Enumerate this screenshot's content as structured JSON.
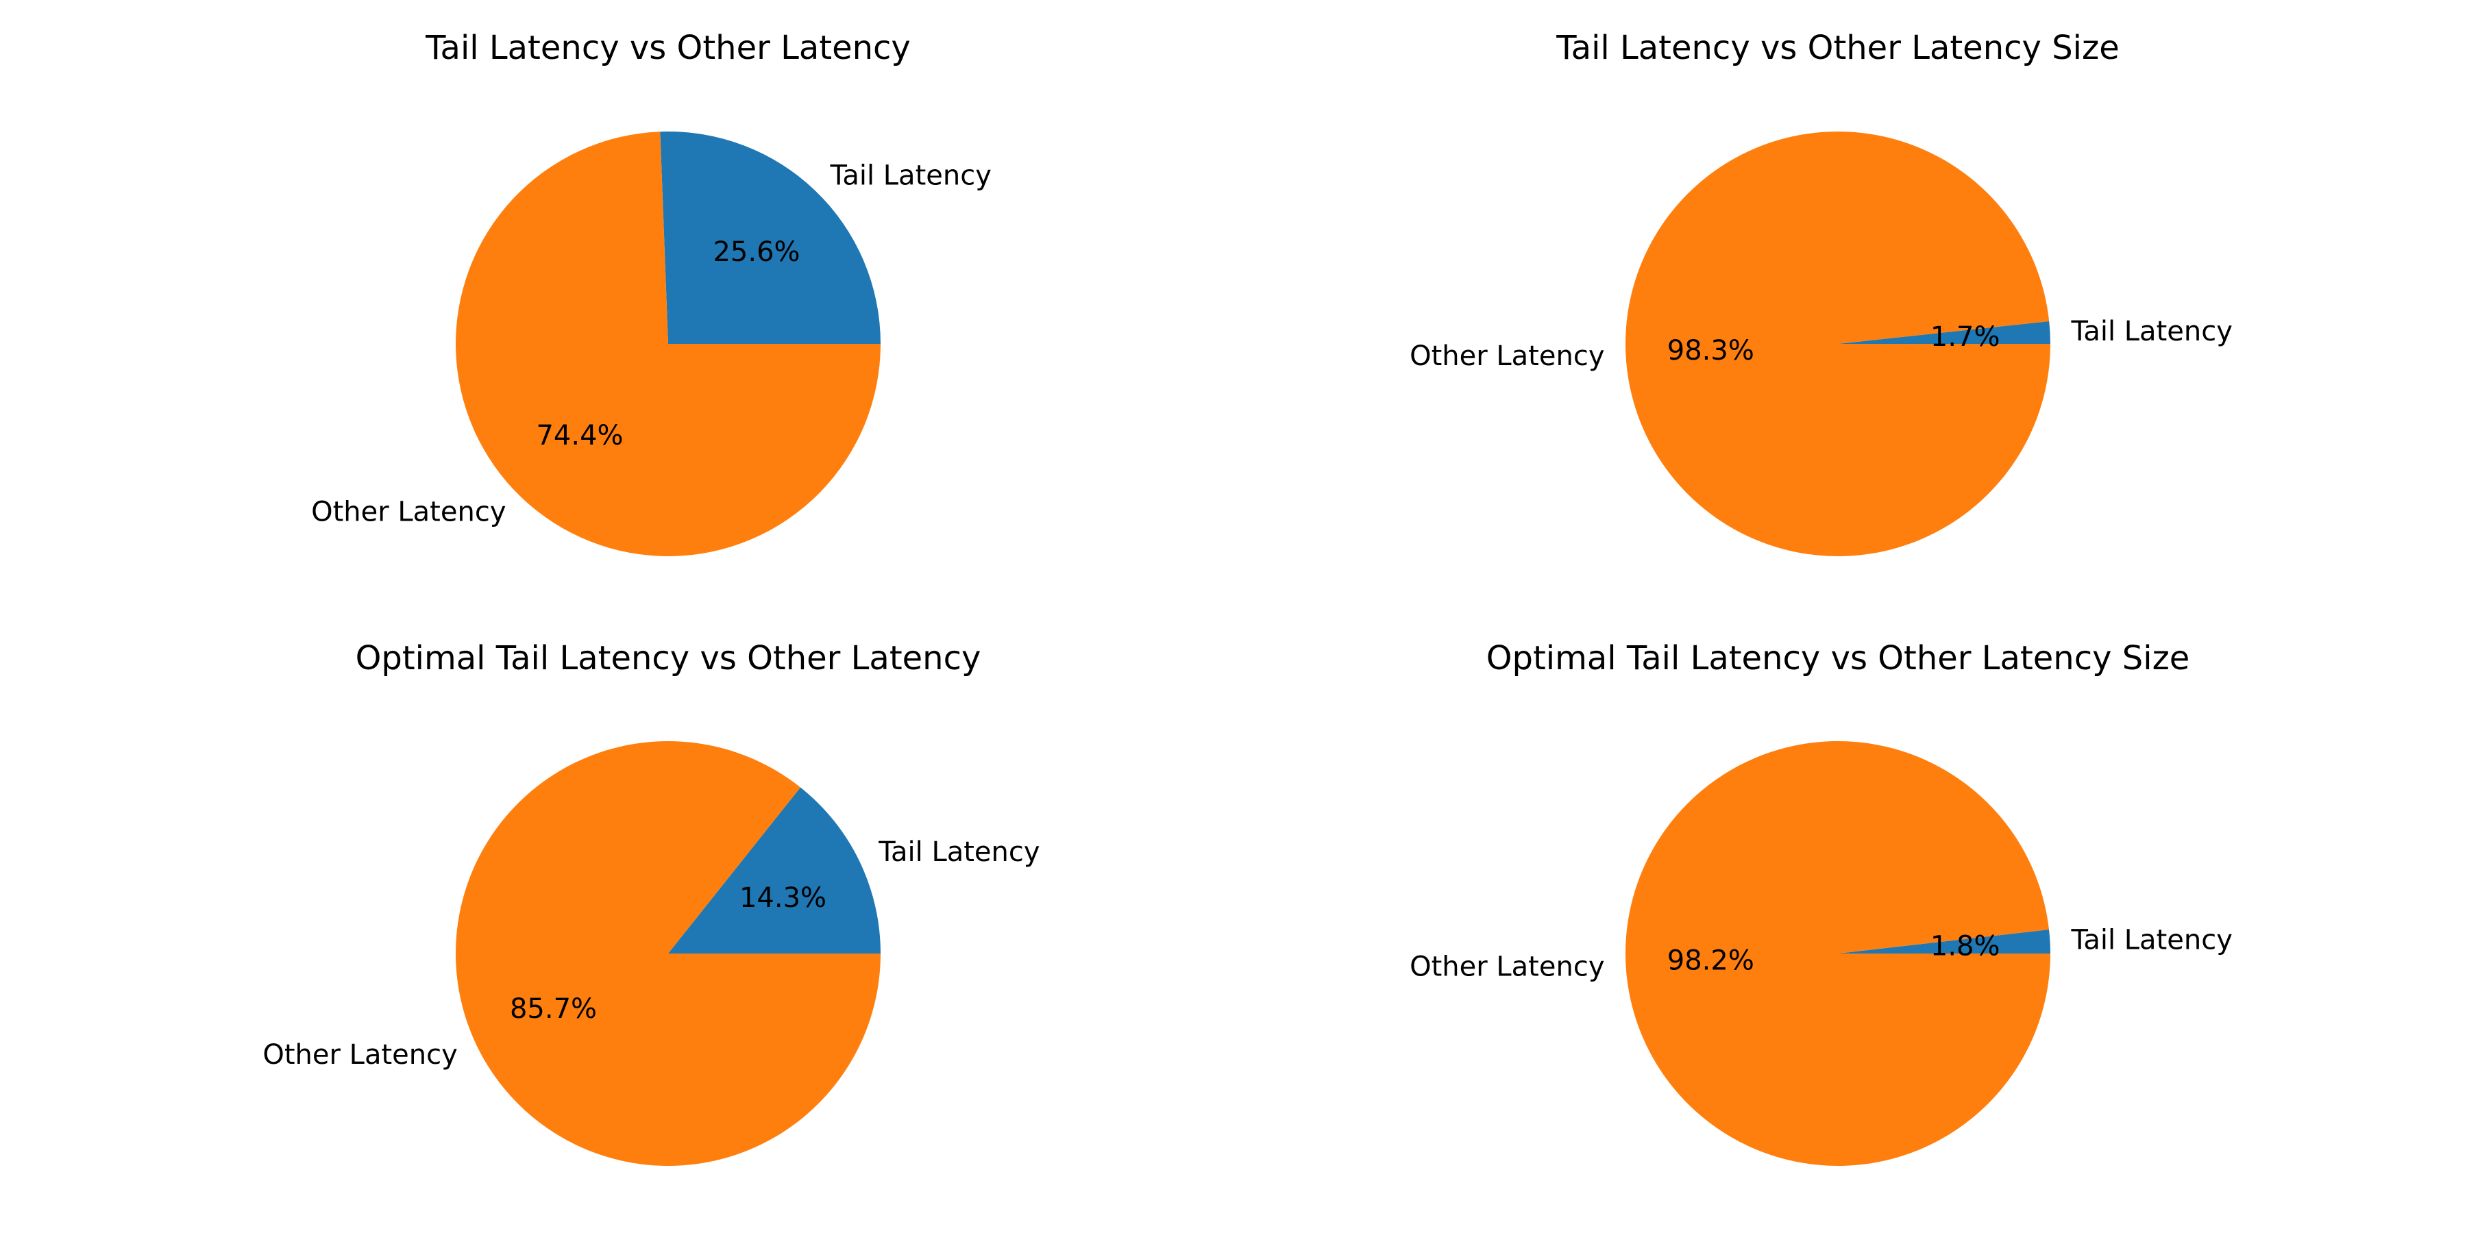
{
  "colors": {
    "tail": "#1f77b4",
    "other": "#ff7f0e"
  },
  "chart_data": [
    {
      "type": "pie",
      "title": "Tail Latency vs Other Latency",
      "labels": [
        "Tail Latency",
        "Other Latency"
      ],
      "values": [
        25.6,
        74.4
      ],
      "percent_labels": [
        "25.6%",
        "74.4%"
      ],
      "start_angle": 0,
      "direction": "counterclockwise"
    },
    {
      "type": "pie",
      "title": "Tail Latency vs Other Latency Size",
      "labels": [
        "Tail Latency",
        "Other Latency"
      ],
      "values": [
        1.7,
        98.3
      ],
      "percent_labels": [
        "1.7%",
        "98.3%"
      ],
      "start_angle": 0,
      "direction": "counterclockwise"
    },
    {
      "type": "pie",
      "title": "Optimal Tail Latency vs Other Latency",
      "labels": [
        "Tail Latency",
        "Other Latency"
      ],
      "values": [
        14.3,
        85.7
      ],
      "percent_labels": [
        "14.3%",
        "85.7%"
      ],
      "start_angle": 0,
      "direction": "counterclockwise"
    },
    {
      "type": "pie",
      "title": "Optimal Tail Latency vs Other Latency Size",
      "labels": [
        "Tail Latency",
        "Other Latency"
      ],
      "values": [
        1.8,
        98.2
      ],
      "percent_labels": [
        "1.8%",
        "98.2%"
      ],
      "start_angle": 0,
      "direction": "counterclockwise"
    }
  ]
}
